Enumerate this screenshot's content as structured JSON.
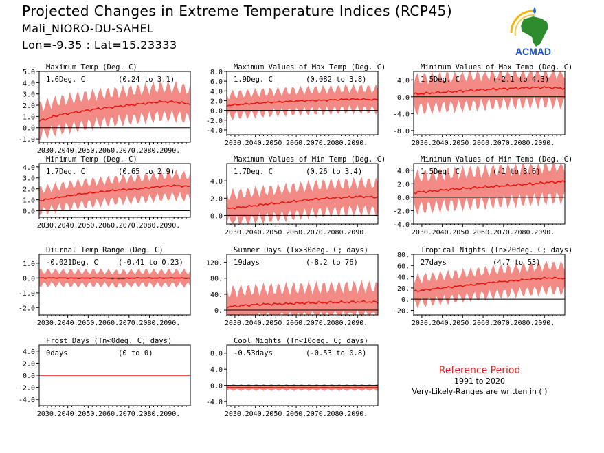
{
  "header": {
    "title": "Projected Changes in Extreme Temperature Indices (RCP45)",
    "station": "Mali_NIORO-DU-SAHEL",
    "coords": "Lon=-9.35 : Lat=15.23333"
  },
  "logo": {
    "text": "ACMAD",
    "icon": "africa-map-logo"
  },
  "reference": {
    "title": "Reference Period",
    "years": "1991 to 2020",
    "note": "Very-Likely-Ranges are written in ( )"
  },
  "colors": {
    "band": "#f28a85",
    "line": "#e8120c",
    "axis": "#000000"
  },
  "chart_data": [
    {
      "type": "area",
      "title": "Maximum Temp (Deg. C)",
      "stat": "1.6Deg. C",
      "range": "(0.24 to 3.1)",
      "xlim": [
        2026,
        2100
      ],
      "ylim": [
        -1.3,
        5.0
      ],
      "yticks": [
        -1,
        0,
        1,
        2,
        3,
        4,
        5
      ],
      "ytick_labels": [
        "-1.0",
        "0.0",
        "1.0",
        "2.0",
        "3.0",
        "4.0",
        "5.0"
      ],
      "xticks": [
        2030,
        2040,
        2050,
        2060,
        2070,
        2080,
        2090
      ],
      "xtick_labels": [
        "2030.",
        "2040.",
        "2050.",
        "2060.",
        "2070.",
        "2080.",
        "2090."
      ],
      "series": [
        {
          "x": [
            2026,
            2035,
            2045,
            2055,
            2065,
            2075,
            2085,
            2092,
            2100
          ],
          "values": [
            0.6,
            1.1,
            1.4,
            1.7,
            1.9,
            2.1,
            2.3,
            2.3,
            2.1
          ],
          "spread": 1.3
        }
      ]
    },
    {
      "type": "area",
      "title": "Maximum Values of Max Temp (Deg. C)",
      "stat": "1.9Deg. C",
      "range": "(0.082 to 3.8)",
      "xlim": [
        2026,
        2100
      ],
      "ylim": [
        -5.0,
        8.0
      ],
      "yticks": [
        -4,
        -2,
        0,
        2,
        4,
        6,
        8
      ],
      "ytick_labels": [
        "-4.0",
        "-2.0",
        "0.0",
        "2.0",
        "4.0",
        "6.0",
        "8.0"
      ],
      "xticks": [
        2030,
        2040,
        2050,
        2060,
        2070,
        2080,
        2090
      ],
      "xtick_labels": [
        "2030.",
        "2040.",
        "2050.",
        "2060.",
        "2070.",
        "2080.",
        "2090."
      ],
      "series": [
        {
          "x": [
            2026,
            2035,
            2045,
            2055,
            2065,
            2075,
            2085,
            2092,
            2100
          ],
          "values": [
            1.0,
            1.3,
            1.6,
            1.8,
            2.0,
            2.1,
            2.3,
            2.3,
            2.2
          ],
          "spread": 2.2
        }
      ]
    },
    {
      "type": "area",
      "title": "Minimum Values of Max Temp (Deg. C)",
      "stat": "1.5Deg. C",
      "range": "(-2.1 to 4.3)",
      "xlim": [
        2026,
        2100
      ],
      "ylim": [
        -9.0,
        6.0
      ],
      "yticks": [
        -8,
        -4,
        0,
        4
      ],
      "ytick_labels": [
        "-8.0",
        "-4.0",
        "0.0",
        "4.0"
      ],
      "xticks": [
        2030,
        2040,
        2050,
        2060,
        2070,
        2080,
        2090
      ],
      "xtick_labels": [
        "2030.",
        "2040.",
        "2050.",
        "2060.",
        "2070.",
        "2080.",
        "2090."
      ],
      "series": [
        {
          "x": [
            2026,
            2035,
            2045,
            2055,
            2065,
            2075,
            2085,
            2092,
            2100
          ],
          "values": [
            0.6,
            0.9,
            1.2,
            1.5,
            1.8,
            2.0,
            2.2,
            2.2,
            2.0
          ],
          "spread": 3.6
        }
      ]
    },
    {
      "type": "area",
      "title": "Minimum Temp (Deg. C)",
      "stat": "1.7Deg. C",
      "range": "(0.65 to 2.9)",
      "xlim": [
        2026,
        2100
      ],
      "ylim": [
        -0.6,
        4.3
      ],
      "yticks": [
        0,
        1,
        2,
        3,
        4
      ],
      "ytick_labels": [
        "0.0",
        "1.0",
        "2.0",
        "3.0",
        "4.0"
      ],
      "xticks": [
        2030,
        2040,
        2050,
        2060,
        2070,
        2080,
        2090
      ],
      "xtick_labels": [
        "2030.",
        "2040.",
        "2050.",
        "2060.",
        "2070.",
        "2080.",
        "2090."
      ],
      "series": [
        {
          "x": [
            2026,
            2035,
            2045,
            2055,
            2065,
            2075,
            2085,
            2092,
            2100
          ],
          "values": [
            0.9,
            1.2,
            1.5,
            1.7,
            1.9,
            2.0,
            2.2,
            2.3,
            2.2
          ],
          "spread": 1.0
        }
      ]
    },
    {
      "type": "area",
      "title": "Maximum Values of Min Temp (Deg. C)",
      "stat": "1.7Deg. C",
      "range": "(0.26 to 3.4)",
      "xlim": [
        2026,
        2100
      ],
      "ylim": [
        -1.0,
        6.0
      ],
      "yticks": [
        0,
        2,
        4
      ],
      "ytick_labels": [
        "0.0",
        "2.0",
        "4.0"
      ],
      "xticks": [
        2030,
        2040,
        2050,
        2060,
        2070,
        2080,
        2090
      ],
      "xtick_labels": [
        "2030.",
        "2040.",
        "2050.",
        "2060.",
        "2070.",
        "2080.",
        "2090."
      ],
      "series": [
        {
          "x": [
            2026,
            2035,
            2045,
            2055,
            2065,
            2075,
            2085,
            2092,
            2100
          ],
          "values": [
            0.8,
            1.0,
            1.3,
            1.5,
            1.8,
            2.0,
            2.1,
            2.2,
            2.1
          ],
          "spread": 1.6
        }
      ]
    },
    {
      "type": "area",
      "title": "Minimum Values of Min Temp (Deg. C)",
      "stat": "1.5Deg. C",
      "range": "(-1 to 3.6)",
      "xlim": [
        2026,
        2100
      ],
      "ylim": [
        -4.0,
        5.0
      ],
      "yticks": [
        -4,
        -2,
        0,
        2,
        4
      ],
      "ytick_labels": [
        "-4.0",
        "-2.0",
        "0.0",
        "2.0",
        "4.0"
      ],
      "xticks": [
        2030,
        2040,
        2050,
        2060,
        2070,
        2080,
        2090
      ],
      "xtick_labels": [
        "2030.",
        "2040.",
        "2050.",
        "2060.",
        "2070.",
        "2080.",
        "2090."
      ],
      "series": [
        {
          "x": [
            2026,
            2035,
            2045,
            2055,
            2065,
            2075,
            2085,
            2092,
            2100
          ],
          "values": [
            0.7,
            0.9,
            1.2,
            1.4,
            1.6,
            1.8,
            2.0,
            2.2,
            2.3
          ],
          "spread": 2.4
        }
      ]
    },
    {
      "type": "area",
      "title": "Diurnal Temp Range (Deg. C)",
      "stat": "-0.021Deg. C",
      "range": "(-0.41 to 0.23)",
      "xlim": [
        2026,
        2100
      ],
      "ylim": [
        -2.5,
        1.6
      ],
      "yticks": [
        -2,
        -1,
        0,
        1
      ],
      "ytick_labels": [
        "-2.0",
        "-1.0",
        "0.0",
        "1.0"
      ],
      "xticks": [
        2030,
        2040,
        2050,
        2060,
        2070,
        2080,
        2090
      ],
      "xtick_labels": [
        "2030.",
        "2040.",
        "2050.",
        "2060.",
        "2070.",
        "2080.",
        "2090."
      ],
      "series": [
        {
          "x": [
            2026,
            2035,
            2045,
            2055,
            2065,
            2075,
            2085,
            2092,
            2100
          ],
          "values": [
            0.0,
            0.0,
            -0.02,
            0.0,
            -0.05,
            0.0,
            -0.02,
            0.0,
            -0.03
          ],
          "spread": 0.45
        }
      ]
    },
    {
      "type": "area",
      "title": "Summer Days (Tx>30deg. C; days)",
      "stat": "19days",
      "range": "(-8.2 to 76)",
      "xlim": [
        2026,
        2100
      ],
      "ylim": [
        -12,
        140
      ],
      "yticks": [
        0,
        40,
        80,
        120
      ],
      "ytick_labels": [
        "0.",
        "40.",
        "80.",
        "120."
      ],
      "xticks": [
        2030,
        2040,
        2050,
        2060,
        2070,
        2080,
        2090
      ],
      "xtick_labels": [
        "2030.",
        "2040.",
        "2050.",
        "2060.",
        "2070.",
        "2080.",
        "2090."
      ],
      "series": [
        {
          "x": [
            2026,
            2035,
            2045,
            2055,
            2065,
            2075,
            2085,
            2092,
            2100
          ],
          "values": [
            8,
            12,
            15,
            16,
            18,
            19,
            20,
            21,
            20
          ],
          "spread": 38
        }
      ]
    },
    {
      "type": "area",
      "title": "Tropical Nights (Tn>20deg. C; days)",
      "stat": "27days",
      "range": "(4.7 to 53)",
      "xlim": [
        2026,
        2100
      ],
      "ylim": [
        -28,
        80
      ],
      "yticks": [
        -20,
        0,
        20,
        40,
        60,
        80
      ],
      "ytick_labels": [
        "-20.",
        "0.",
        "20.",
        "40.",
        "60.",
        "80."
      ],
      "xticks": [
        2030,
        2040,
        2050,
        2060,
        2070,
        2080,
        2090
      ],
      "xtick_labels": [
        "2030.",
        "2040.",
        "2050.",
        "2060.",
        "2070.",
        "2080.",
        "2090."
      ],
      "series": [
        {
          "x": [
            2026,
            2035,
            2045,
            2055,
            2065,
            2075,
            2085,
            2092,
            2100
          ],
          "values": [
            14,
            18,
            22,
            26,
            30,
            33,
            36,
            38,
            37
          ],
          "spread": 22
        }
      ]
    },
    {
      "type": "area",
      "title": "Frost Days (Tn<0deg. C; days)",
      "stat": "0days",
      "range": "(0 to 0)",
      "xlim": [
        2026,
        2100
      ],
      "ylim": [
        -5.0,
        5.0
      ],
      "yticks": [
        -4,
        -2,
        0,
        2,
        4
      ],
      "ytick_labels": [
        "-4.0",
        "-2.0",
        "0.0",
        "2.0",
        "4.0"
      ],
      "xticks": [
        2030,
        2040,
        2050,
        2060,
        2070,
        2080,
        2090
      ],
      "xtick_labels": [
        "2030.",
        "2040.",
        "2050.",
        "2060.",
        "2070.",
        "2080.",
        "2090."
      ],
      "series": [
        {
          "x": [
            2026,
            2100
          ],
          "values": [
            0,
            0
          ],
          "spread": 0
        }
      ]
    },
    {
      "type": "area",
      "title": "Cool Nights (Tn<10deg. C; days)",
      "stat": "-0.53days",
      "range": "(-0.53 to 0.8)",
      "xlim": [
        2026,
        2100
      ],
      "ylim": [
        -5.0,
        10.0
      ],
      "yticks": [
        -4,
        0,
        4,
        8
      ],
      "ytick_labels": [
        "-4.0",
        "0.0",
        "4.0",
        "8.0"
      ],
      "xticks": [
        2030,
        2040,
        2050,
        2060,
        2070,
        2080,
        2090
      ],
      "xtick_labels": [
        "2030.",
        "2040.",
        "2050.",
        "2060.",
        "2070.",
        "2080.",
        "2090."
      ],
      "series": [
        {
          "x": [
            2026,
            2100
          ],
          "values": [
            -0.53,
            -0.53
          ],
          "spread": 0.6
        }
      ]
    }
  ]
}
